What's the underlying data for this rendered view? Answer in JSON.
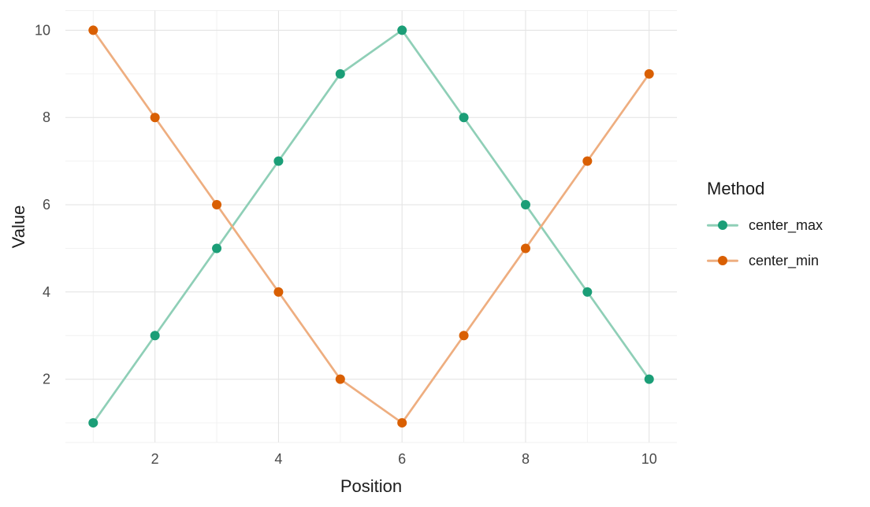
{
  "chart_data": {
    "type": "line",
    "title": "",
    "xlabel": "Position",
    "ylabel": "Value",
    "legend_title": "Method",
    "legend_position": "right",
    "x": [
      1,
      2,
      3,
      4,
      5,
      6,
      7,
      8,
      9,
      10
    ],
    "series": [
      {
        "name": "center_max",
        "values": [
          1,
          3,
          5,
          7,
          9,
          10,
          8,
          6,
          4,
          2
        ],
        "point_color": "#1b9e77",
        "line_color": "#8fcfb7"
      },
      {
        "name": "center_min",
        "values": [
          10,
          8,
          6,
          4,
          2,
          1,
          3,
          5,
          7,
          9
        ],
        "point_color": "#d95f02",
        "line_color": "#eeae80"
      }
    ],
    "x_ticks": [
      2,
      4,
      6,
      8,
      10
    ],
    "y_ticks": [
      2,
      4,
      6,
      8,
      10
    ],
    "x_minor_ticks": [
      1,
      3,
      5,
      7,
      9
    ],
    "y_minor_ticks": [
      1,
      3,
      5,
      7,
      9
    ],
    "xlim": [
      0.55,
      10.45
    ],
    "ylim": [
      0.55,
      10.45
    ],
    "grid": "major+minor",
    "marker": "circle"
  },
  "style": {
    "background": "#ffffff",
    "grid_major_color": "#e4e4e4",
    "grid_minor_color": "#f0f0f0",
    "axis_tick_color": "#4a4a4a",
    "axis_title_color": "#1d1d1d",
    "legend_text_color": "#1a1a1a"
  }
}
